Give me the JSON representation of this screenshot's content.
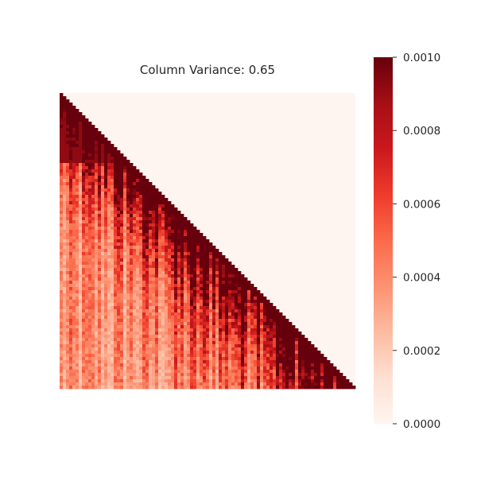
{
  "chart_data": {
    "type": "heatmap",
    "title": "Column Variance: 0.65",
    "xlabel": "",
    "ylabel": "",
    "shape": "lower-triangular",
    "colormap": "Reds",
    "color_range": [
      0.0,
      0.001
    ],
    "colorbar": {
      "ticks": [
        {
          "value": 0.0,
          "label": "0.0000"
        },
        {
          "value": 0.0002,
          "label": "0.0002"
        },
        {
          "value": 0.0004,
          "label": "0.0004"
        },
        {
          "value": 0.0006,
          "label": "0.0006"
        },
        {
          "value": 0.0008,
          "label": "0.0008"
        },
        {
          "value": 0.001,
          "label": "0.0010"
        }
      ]
    },
    "grid": false,
    "axes_visible": false
  }
}
